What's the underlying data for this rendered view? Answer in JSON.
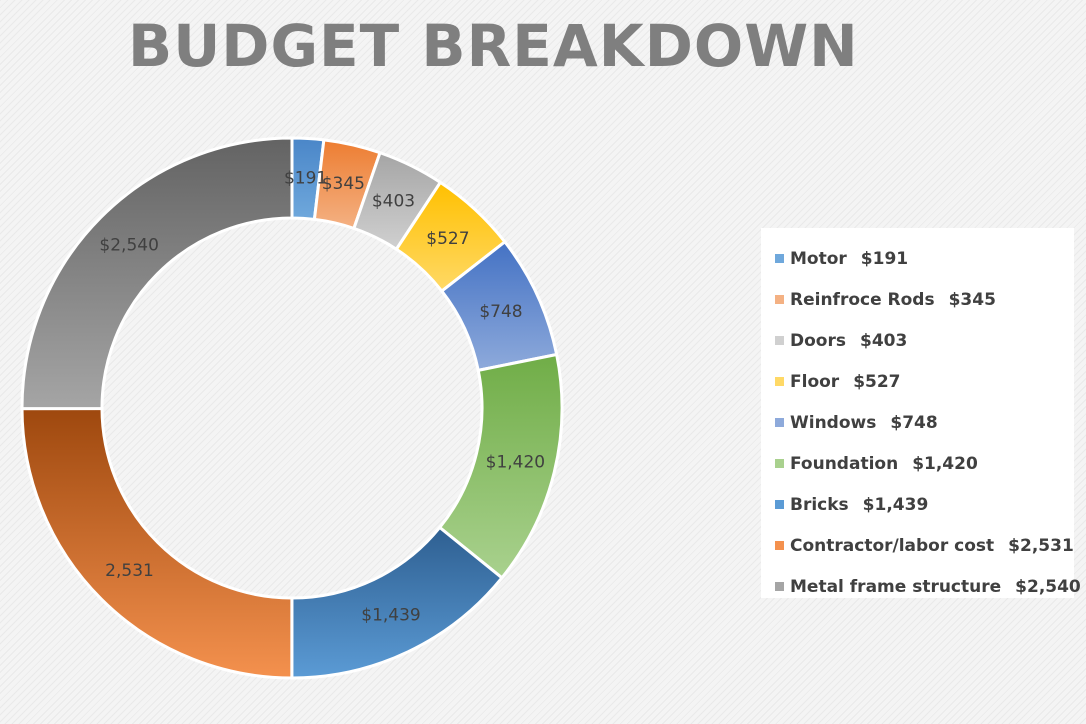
{
  "chart_data": {
    "type": "pie",
    "variant": "donut",
    "title": "BUDGET BREAKDOWN",
    "legend": "right",
    "slices": [
      {
        "name": "Motor",
        "value": 191,
        "label": "$191",
        "legend_value": "$191",
        "color": "#6fa8dc",
        "color_dark": "#4a86c8"
      },
      {
        "name": "Reinfroce Rods",
        "value": 345,
        "label": "$345",
        "legend_value": "$345",
        "color": "#f4b183",
        "color_dark": "#ed7d31"
      },
      {
        "name": "Doors",
        "value": 403,
        "label": "$403",
        "legend_value": "$403",
        "color": "#d0d0d0",
        "color_dark": "#a5a5a5"
      },
      {
        "name": "Floor",
        "value": 527,
        "label": "$527",
        "legend_value": "$527",
        "color": "#ffd966",
        "color_dark": "#ffc000"
      },
      {
        "name": "Windows",
        "value": 748,
        "label": "$748",
        "legend_value": "$748",
        "color": "#8eaadb",
        "color_dark": "#4472c4"
      },
      {
        "name": "Foundation",
        "value": 1420,
        "label": "$1,420",
        "legend_value": "$1,420",
        "color": "#a9d18e",
        "color_dark": "#70ad47"
      },
      {
        "name": "Bricks",
        "value": 1439,
        "label": "$1,439",
        "legend_value": "$1,439",
        "color": "#5b9bd5",
        "color_dark": "#2e5f91"
      },
      {
        "name": "Contractor/labor cost",
        "value": 2531,
        "label": "2,531",
        "legend_value": "$2,531",
        "color": "#f4914e",
        "color_dark": "#9e480e"
      },
      {
        "name": "Metal frame structure",
        "value": 2540,
        "label": "$2,540",
        "legend_value": "$2,540",
        "color": "#a5a5a5",
        "color_dark": "#636363"
      }
    ]
  }
}
